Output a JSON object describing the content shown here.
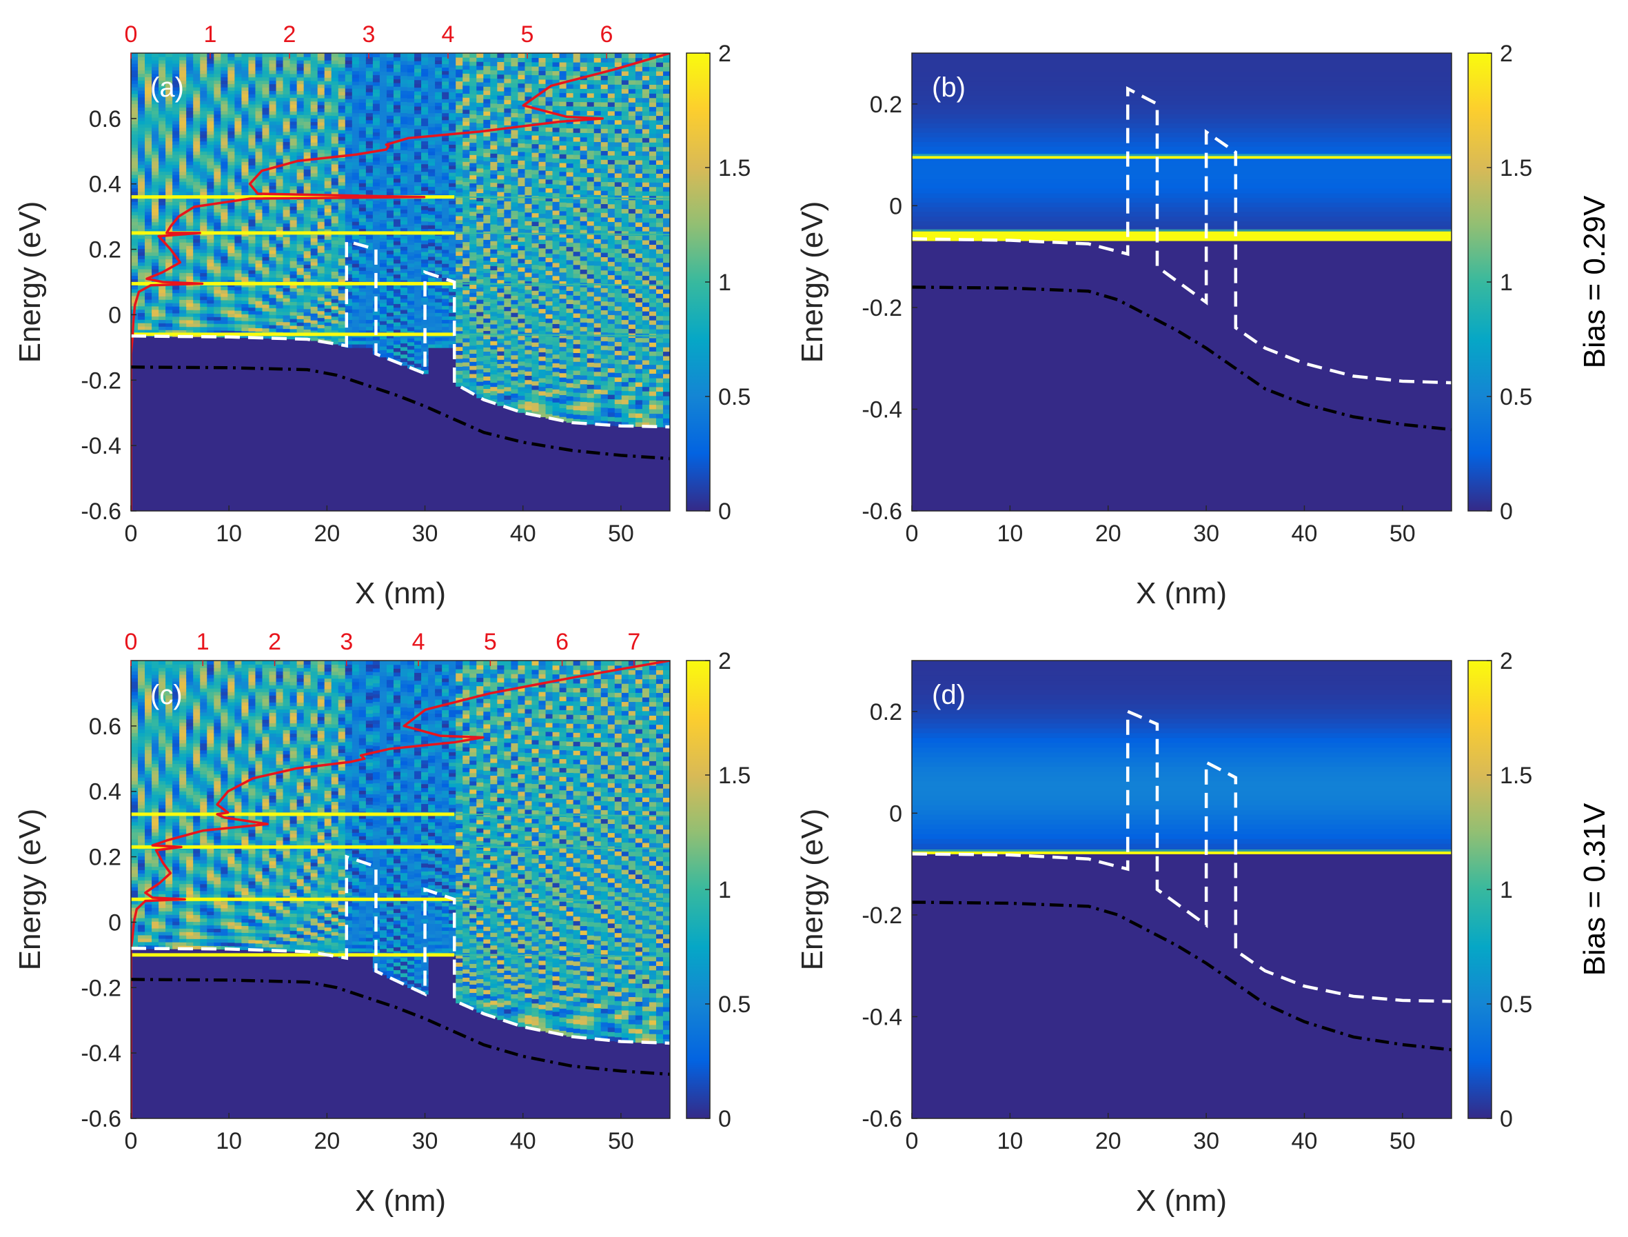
{
  "figure": {
    "colors": {
      "colormap": [
        "#352a87",
        "#0363e1",
        "#1485d4",
        "#06a7c6",
        "#38b99e",
        "#92bf73",
        "#d9ba56",
        "#fcce2e",
        "#f9fb0e"
      ],
      "conduction_band": "#ffffff",
      "valence_band": "#000000",
      "density_curve": "#e8141c",
      "top_axis_text": "#e8141c"
    },
    "side_labels": [
      "Bias = 0.29V",
      "Bias = 0.31V"
    ]
  },
  "chart_data": [
    {
      "panel": "(a)",
      "type": "heatmap",
      "xlabel": "X (nm)",
      "ylabel": "Energy (eV)",
      "xlim": [
        0,
        55
      ],
      "ylim": [
        -0.6,
        0.8
      ],
      "x_ticks": [
        0,
        10,
        20,
        30,
        40,
        50
      ],
      "y_ticks": [
        -0.6,
        -0.4,
        -0.2,
        0,
        0.2,
        0.4,
        0.6
      ],
      "top_axis_ticks": [
        0,
        1,
        2,
        3,
        4,
        5,
        6
      ],
      "top_axis_max": 6.8,
      "colorbar": {
        "min": 0,
        "max": 2,
        "ticks": [
          0,
          0.5,
          1,
          1.5,
          2
        ]
      },
      "heatmap_style": "oscillatory",
      "resonance_levels": [
        -0.06,
        0.095,
        0.25,
        0.36
      ],
      "conduction_band": {
        "x": [
          0,
          10,
          18,
          21,
          22,
          22,
          25,
          25,
          30,
          30,
          33,
          33,
          36,
          40,
          45,
          50,
          55
        ],
        "y": [
          -0.065,
          -0.068,
          -0.075,
          -0.09,
          -0.095,
          0.225,
          0.2,
          -0.12,
          -0.18,
          0.13,
          0.1,
          -0.21,
          -0.26,
          -0.3,
          -0.33,
          -0.34,
          -0.343
        ]
      },
      "valence_band": {
        "x": [
          0,
          10,
          18,
          21,
          24,
          27,
          30,
          33,
          36,
          40,
          45,
          50,
          55
        ],
        "y": [
          -0.16,
          -0.162,
          -0.168,
          -0.185,
          -0.215,
          -0.245,
          -0.28,
          -0.32,
          -0.36,
          -0.39,
          -0.415,
          -0.43,
          -0.44
        ]
      },
      "density_curve": {
        "y": [
          -0.6,
          -0.5,
          -0.4,
          -0.3,
          -0.2,
          -0.12,
          -0.07,
          -0.02,
          0.03,
          0.07,
          0.09,
          0.095,
          0.1,
          0.11,
          0.13,
          0.16,
          0.2,
          0.24,
          0.25,
          0.25,
          0.27,
          0.3,
          0.33,
          0.355,
          0.36,
          0.37,
          0.4,
          0.44,
          0.47,
          0.49,
          0.505,
          0.515,
          0.52,
          0.54,
          0.56,
          0.59,
          0.6,
          0.605,
          0.64,
          0.7,
          0.75,
          0.8
        ],
        "x": [
          0,
          0,
          0,
          0,
          0,
          0,
          0.02,
          0.03,
          0.05,
          0.1,
          0.25,
          0.9,
          0.4,
          0.2,
          0.4,
          0.62,
          0.5,
          0.35,
          0.87,
          0.45,
          0.5,
          0.6,
          0.8,
          1.5,
          3.7,
          1.6,
          1.5,
          1.65,
          2.1,
          2.85,
          3.22,
          3.25,
          3.22,
          3.5,
          4.4,
          5.4,
          5.95,
          5.5,
          4.95,
          5.3,
          6.1,
          6.8
        ]
      }
    },
    {
      "panel": "(b)",
      "type": "heatmap",
      "xlabel": "X (nm)",
      "ylabel": "Energy (eV)",
      "xlim": [
        0,
        55
      ],
      "ylim": [
        -0.6,
        0.3
      ],
      "x_ticks": [
        0,
        10,
        20,
        30,
        40,
        50
      ],
      "y_ticks": [
        -0.6,
        -0.4,
        -0.2,
        0,
        0.2
      ],
      "colorbar": {
        "min": 0,
        "max": 2,
        "ticks": [
          0,
          0.5,
          1,
          1.5,
          2
        ]
      },
      "heatmap_style": "bands",
      "band_floor": -0.066,
      "bright_levels": [
        -0.06,
        0.095
      ],
      "conduction_band": {
        "x": [
          0,
          10,
          18,
          21,
          22,
          22,
          25,
          25,
          30,
          30,
          33,
          33,
          36,
          40,
          45,
          50,
          55
        ],
        "y": [
          -0.065,
          -0.068,
          -0.075,
          -0.09,
          -0.095,
          0.23,
          0.2,
          -0.12,
          -0.19,
          0.145,
          0.105,
          -0.24,
          -0.28,
          -0.31,
          -0.335,
          -0.345,
          -0.348
        ]
      },
      "valence_band": {
        "x": [
          0,
          10,
          18,
          21,
          24,
          27,
          30,
          33,
          36,
          40,
          45,
          50,
          55
        ],
        "y": [
          -0.16,
          -0.162,
          -0.168,
          -0.185,
          -0.215,
          -0.245,
          -0.28,
          -0.32,
          -0.36,
          -0.39,
          -0.415,
          -0.43,
          -0.44
        ]
      }
    },
    {
      "panel": "(c)",
      "type": "heatmap",
      "xlabel": "X (nm)",
      "ylabel": "Energy (eV)",
      "xlim": [
        0,
        55
      ],
      "ylim": [
        -0.6,
        0.8
      ],
      "x_ticks": [
        0,
        10,
        20,
        30,
        40,
        50
      ],
      "y_ticks": [
        -0.6,
        -0.4,
        -0.2,
        0,
        0.2,
        0.4,
        0.6
      ],
      "top_axis_ticks": [
        0,
        1,
        2,
        3,
        4,
        5,
        6,
        7
      ],
      "top_axis_max": 7.5,
      "colorbar": {
        "min": 0,
        "max": 2,
        "ticks": [
          0,
          0.5,
          1,
          1.5,
          2
        ]
      },
      "heatmap_style": "oscillatory",
      "resonance_levels": [
        -0.1,
        0.07,
        0.23,
        0.33
      ],
      "conduction_band": {
        "x": [
          0,
          10,
          18,
          21,
          22,
          22,
          25,
          25,
          30,
          30,
          33,
          33,
          36,
          40,
          45,
          50,
          55
        ],
        "y": [
          -0.08,
          -0.082,
          -0.09,
          -0.105,
          -0.11,
          0.2,
          0.17,
          -0.15,
          -0.22,
          0.1,
          0.07,
          -0.24,
          -0.28,
          -0.32,
          -0.35,
          -0.365,
          -0.37
        ]
      },
      "valence_band": {
        "x": [
          0,
          10,
          18,
          21,
          24,
          27,
          30,
          33,
          36,
          40,
          45,
          50,
          55
        ],
        "y": [
          -0.175,
          -0.177,
          -0.183,
          -0.2,
          -0.23,
          -0.26,
          -0.295,
          -0.335,
          -0.375,
          -0.41,
          -0.44,
          -0.455,
          -0.465
        ]
      },
      "density_curve": {
        "y": [
          -0.6,
          -0.5,
          -0.4,
          -0.3,
          -0.2,
          -0.12,
          -0.08,
          -0.05,
          0,
          0.04,
          0.065,
          0.07,
          0.075,
          0.09,
          0.12,
          0.15,
          0.18,
          0.22,
          0.23,
          0.235,
          0.25,
          0.28,
          0.3,
          0.32,
          0.33,
          0.335,
          0.36,
          0.4,
          0.44,
          0.47,
          0.49,
          0.5,
          0.51,
          0.53,
          0.55,
          0.565,
          0.57,
          0.6,
          0.65,
          0.7,
          0.75,
          0.8
        ],
        "x": [
          0,
          0,
          0,
          0,
          0,
          0,
          0,
          0.02,
          0.04,
          0.08,
          0.2,
          0.75,
          0.3,
          0.2,
          0.4,
          0.55,
          0.45,
          0.35,
          0.7,
          0.3,
          0.5,
          1.0,
          1.9,
          1.3,
          1.2,
          1.35,
          1.2,
          1.35,
          1.7,
          2.3,
          3.05,
          3.25,
          3.2,
          3.6,
          4.5,
          4.9,
          4.3,
          3.8,
          4.1,
          5.0,
          6.2,
          7.5
        ]
      }
    },
    {
      "panel": "(d)",
      "type": "heatmap",
      "xlabel": "X (nm)",
      "ylabel": "Energy (eV)",
      "xlim": [
        0,
        55
      ],
      "ylim": [
        -0.6,
        0.3
      ],
      "x_ticks": [
        0,
        10,
        20,
        30,
        40,
        50
      ],
      "y_ticks": [
        -0.6,
        -0.4,
        -0.2,
        0,
        0.2
      ],
      "colorbar": {
        "min": 0,
        "max": 2,
        "ticks": [
          0,
          0.5,
          1,
          1.5,
          2
        ]
      },
      "heatmap_style": "bands",
      "band_floor": -0.078,
      "bright_levels": [
        -0.078
      ],
      "conduction_band": {
        "x": [
          0,
          10,
          18,
          21,
          22,
          22,
          25,
          25,
          30,
          30,
          33,
          33,
          36,
          40,
          45,
          50,
          55
        ],
        "y": [
          -0.08,
          -0.082,
          -0.09,
          -0.105,
          -0.11,
          0.2,
          0.175,
          -0.15,
          -0.22,
          0.1,
          0.07,
          -0.27,
          -0.31,
          -0.34,
          -0.36,
          -0.368,
          -0.37
        ]
      },
      "valence_band": {
        "x": [
          0,
          10,
          18,
          21,
          24,
          27,
          30,
          33,
          36,
          40,
          45,
          50,
          55
        ],
        "y": [
          -0.175,
          -0.177,
          -0.183,
          -0.2,
          -0.23,
          -0.26,
          -0.295,
          -0.335,
          -0.375,
          -0.41,
          -0.44,
          -0.455,
          -0.465
        ]
      }
    }
  ]
}
